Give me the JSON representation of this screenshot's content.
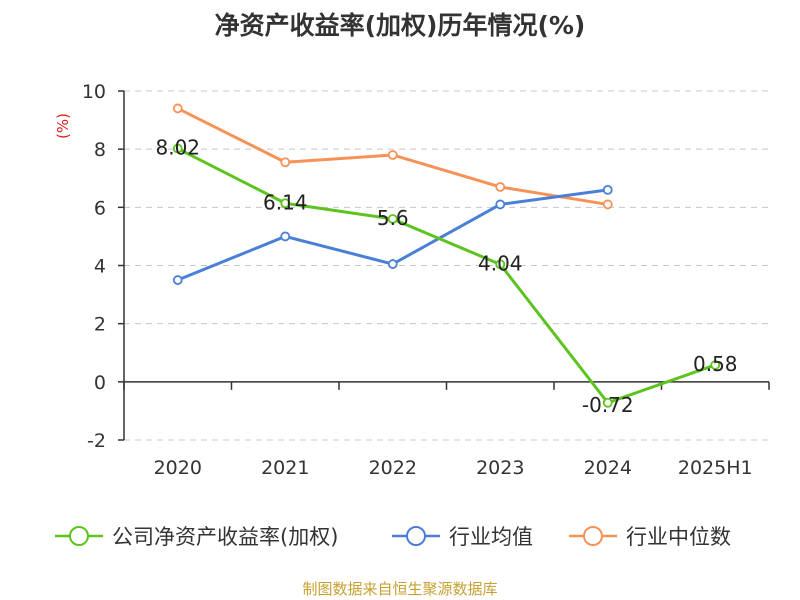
{
  "chart_data": {
    "type": "line",
    "title": "净资产收益率(加权)历年情况(%)",
    "ylabel": "(%)",
    "categories": [
      "2020",
      "2021",
      "2022",
      "2023",
      "2024",
      "2025H1"
    ],
    "ylim": [
      -2,
      10
    ],
    "yticks": [
      -2,
      0,
      2,
      4,
      6,
      8,
      10
    ],
    "grid": true,
    "legend_position": "bottom",
    "series": [
      {
        "name": "公司净资产收益率(加权)",
        "color": "#5cc31f",
        "values": [
          8.02,
          6.14,
          5.6,
          4.04,
          -0.72,
          0.58
        ],
        "data_labels": [
          "8.02",
          "6.14",
          "5.6",
          "4.04",
          "-0.72",
          "0.58"
        ]
      },
      {
        "name": "行业均值",
        "color": "#4a7fd8",
        "values": [
          3.5,
          5.0,
          4.05,
          6.1,
          6.6,
          null
        ]
      },
      {
        "name": "行业中位数",
        "color": "#f69257",
        "values": [
          9.4,
          7.55,
          7.8,
          6.7,
          6.1,
          null
        ]
      }
    ]
  },
  "source_text": "制图数据来自恒生聚源数据库"
}
